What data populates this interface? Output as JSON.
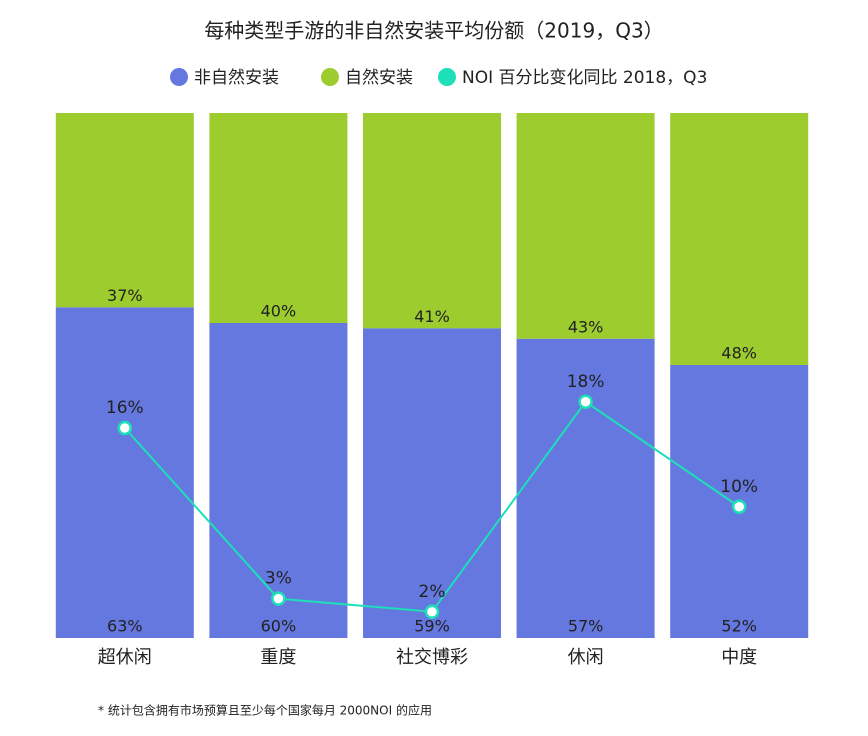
{
  "chart_data": {
    "type": "stacked_bar_line",
    "title": "每种类型手游的非自然安装平均份额（2019，Q3）",
    "categories": [
      "超休闲",
      "重度",
      "社交博彩",
      "休闲",
      "中度"
    ],
    "series": [
      {
        "name": "非自然安装",
        "color": "#6478e0",
        "values": [
          63,
          60,
          59,
          57,
          52
        ],
        "value_labels": [
          "63%",
          "60%",
          "59%",
          "57%",
          "52%"
        ]
      },
      {
        "name": "自然安装",
        "color": "#9ccc2e",
        "values": [
          37,
          40,
          41,
          43,
          48
        ],
        "value_labels": [
          "37%",
          "40%",
          "41%",
          "43%",
          "48%"
        ]
      },
      {
        "name": "NOI 百分比变化同比 2018，Q3",
        "color": "#1de0b8",
        "axis": "y2",
        "values": [
          16,
          3,
          2,
          18,
          10
        ],
        "value_labels": [
          "16%",
          "3%",
          "2%",
          "18%",
          "10%"
        ]
      }
    ],
    "ylim": [
      0,
      100
    ],
    "y2lim": [
      0,
      40
    ],
    "footnote": "* 统计包含拥有市场预算且至少每个国家每月 2000NOI 的应用"
  }
}
